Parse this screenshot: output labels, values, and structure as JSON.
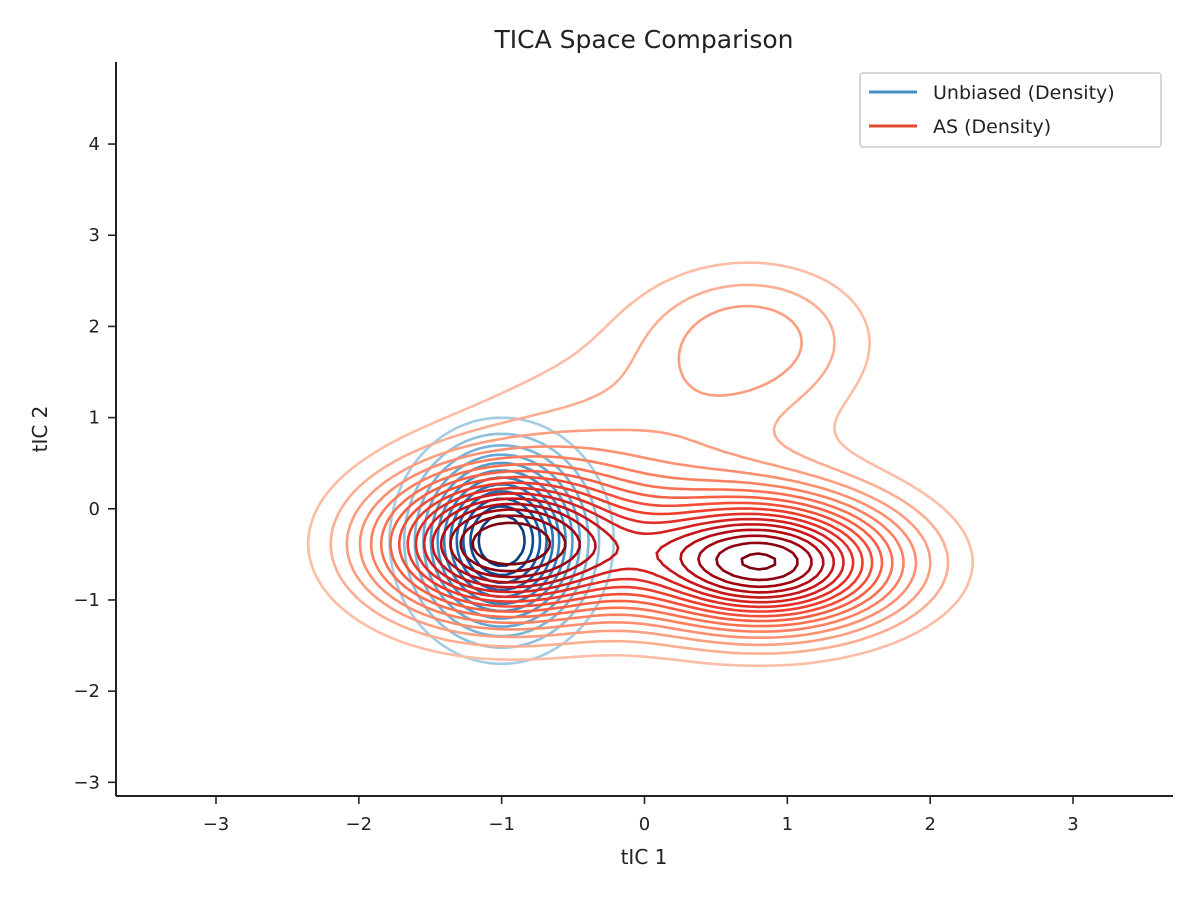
{
  "chart_data": {
    "type": "contour",
    "title": "TICA Space Comparison",
    "xlabel": "tIC 1",
    "ylabel": "tIC 2",
    "xlim": [
      -3.7,
      3.7
    ],
    "ylim": [
      -3.15,
      4.9
    ],
    "xticks": [
      -3,
      -2,
      -1,
      0,
      1,
      2,
      3
    ],
    "yticks": [
      -3,
      -2,
      -1,
      0,
      1,
      2,
      3,
      4
    ],
    "xtick_labels": [
      "−3",
      "−2",
      "−1",
      "0",
      "1",
      "2",
      "3"
    ],
    "ytick_labels": [
      "−3",
      "−2",
      "−1",
      "0",
      "1",
      "2",
      "3",
      "4"
    ],
    "grid": false,
    "legend_position": "top-right",
    "series": [
      {
        "name": "Unbiased (Density)",
        "color": "#4292c6",
        "colormap": "Blues",
        "modes": [
          {
            "x": -1.0,
            "y": -0.35,
            "sx": 0.36,
            "sy": 0.62,
            "w": 1.0
          },
          {
            "x": 0.8,
            "y": 2.0,
            "sx": 0.18,
            "sy": 0.18,
            "w": 0.03
          },
          {
            "x": 0.85,
            "y": -0.62,
            "sx": 0.15,
            "sy": 0.12,
            "w": 0.05
          },
          {
            "x": -2.3,
            "y": 3.95,
            "sx": 0.15,
            "sy": 0.1,
            "w": 0.004
          }
        ],
        "levels": 12
      },
      {
        "name": "AS (Density)",
        "color": "#e34a33",
        "colormap": "Reds",
        "modes": [
          {
            "x": -1.0,
            "y": -0.4,
            "sx": 0.6,
            "sy": 0.55,
            "w": 1.0
          },
          {
            "x": 0.85,
            "y": -0.6,
            "sx": 0.65,
            "sy": 0.5,
            "w": 0.95
          },
          {
            "x": 0.75,
            "y": 1.9,
            "sx": 0.55,
            "sy": 0.55,
            "w": 0.22
          },
          {
            "x": -0.05,
            "y": 0.5,
            "sx": 0.9,
            "sy": 0.9,
            "w": 0.18
          }
        ],
        "levels": 16
      }
    ]
  }
}
